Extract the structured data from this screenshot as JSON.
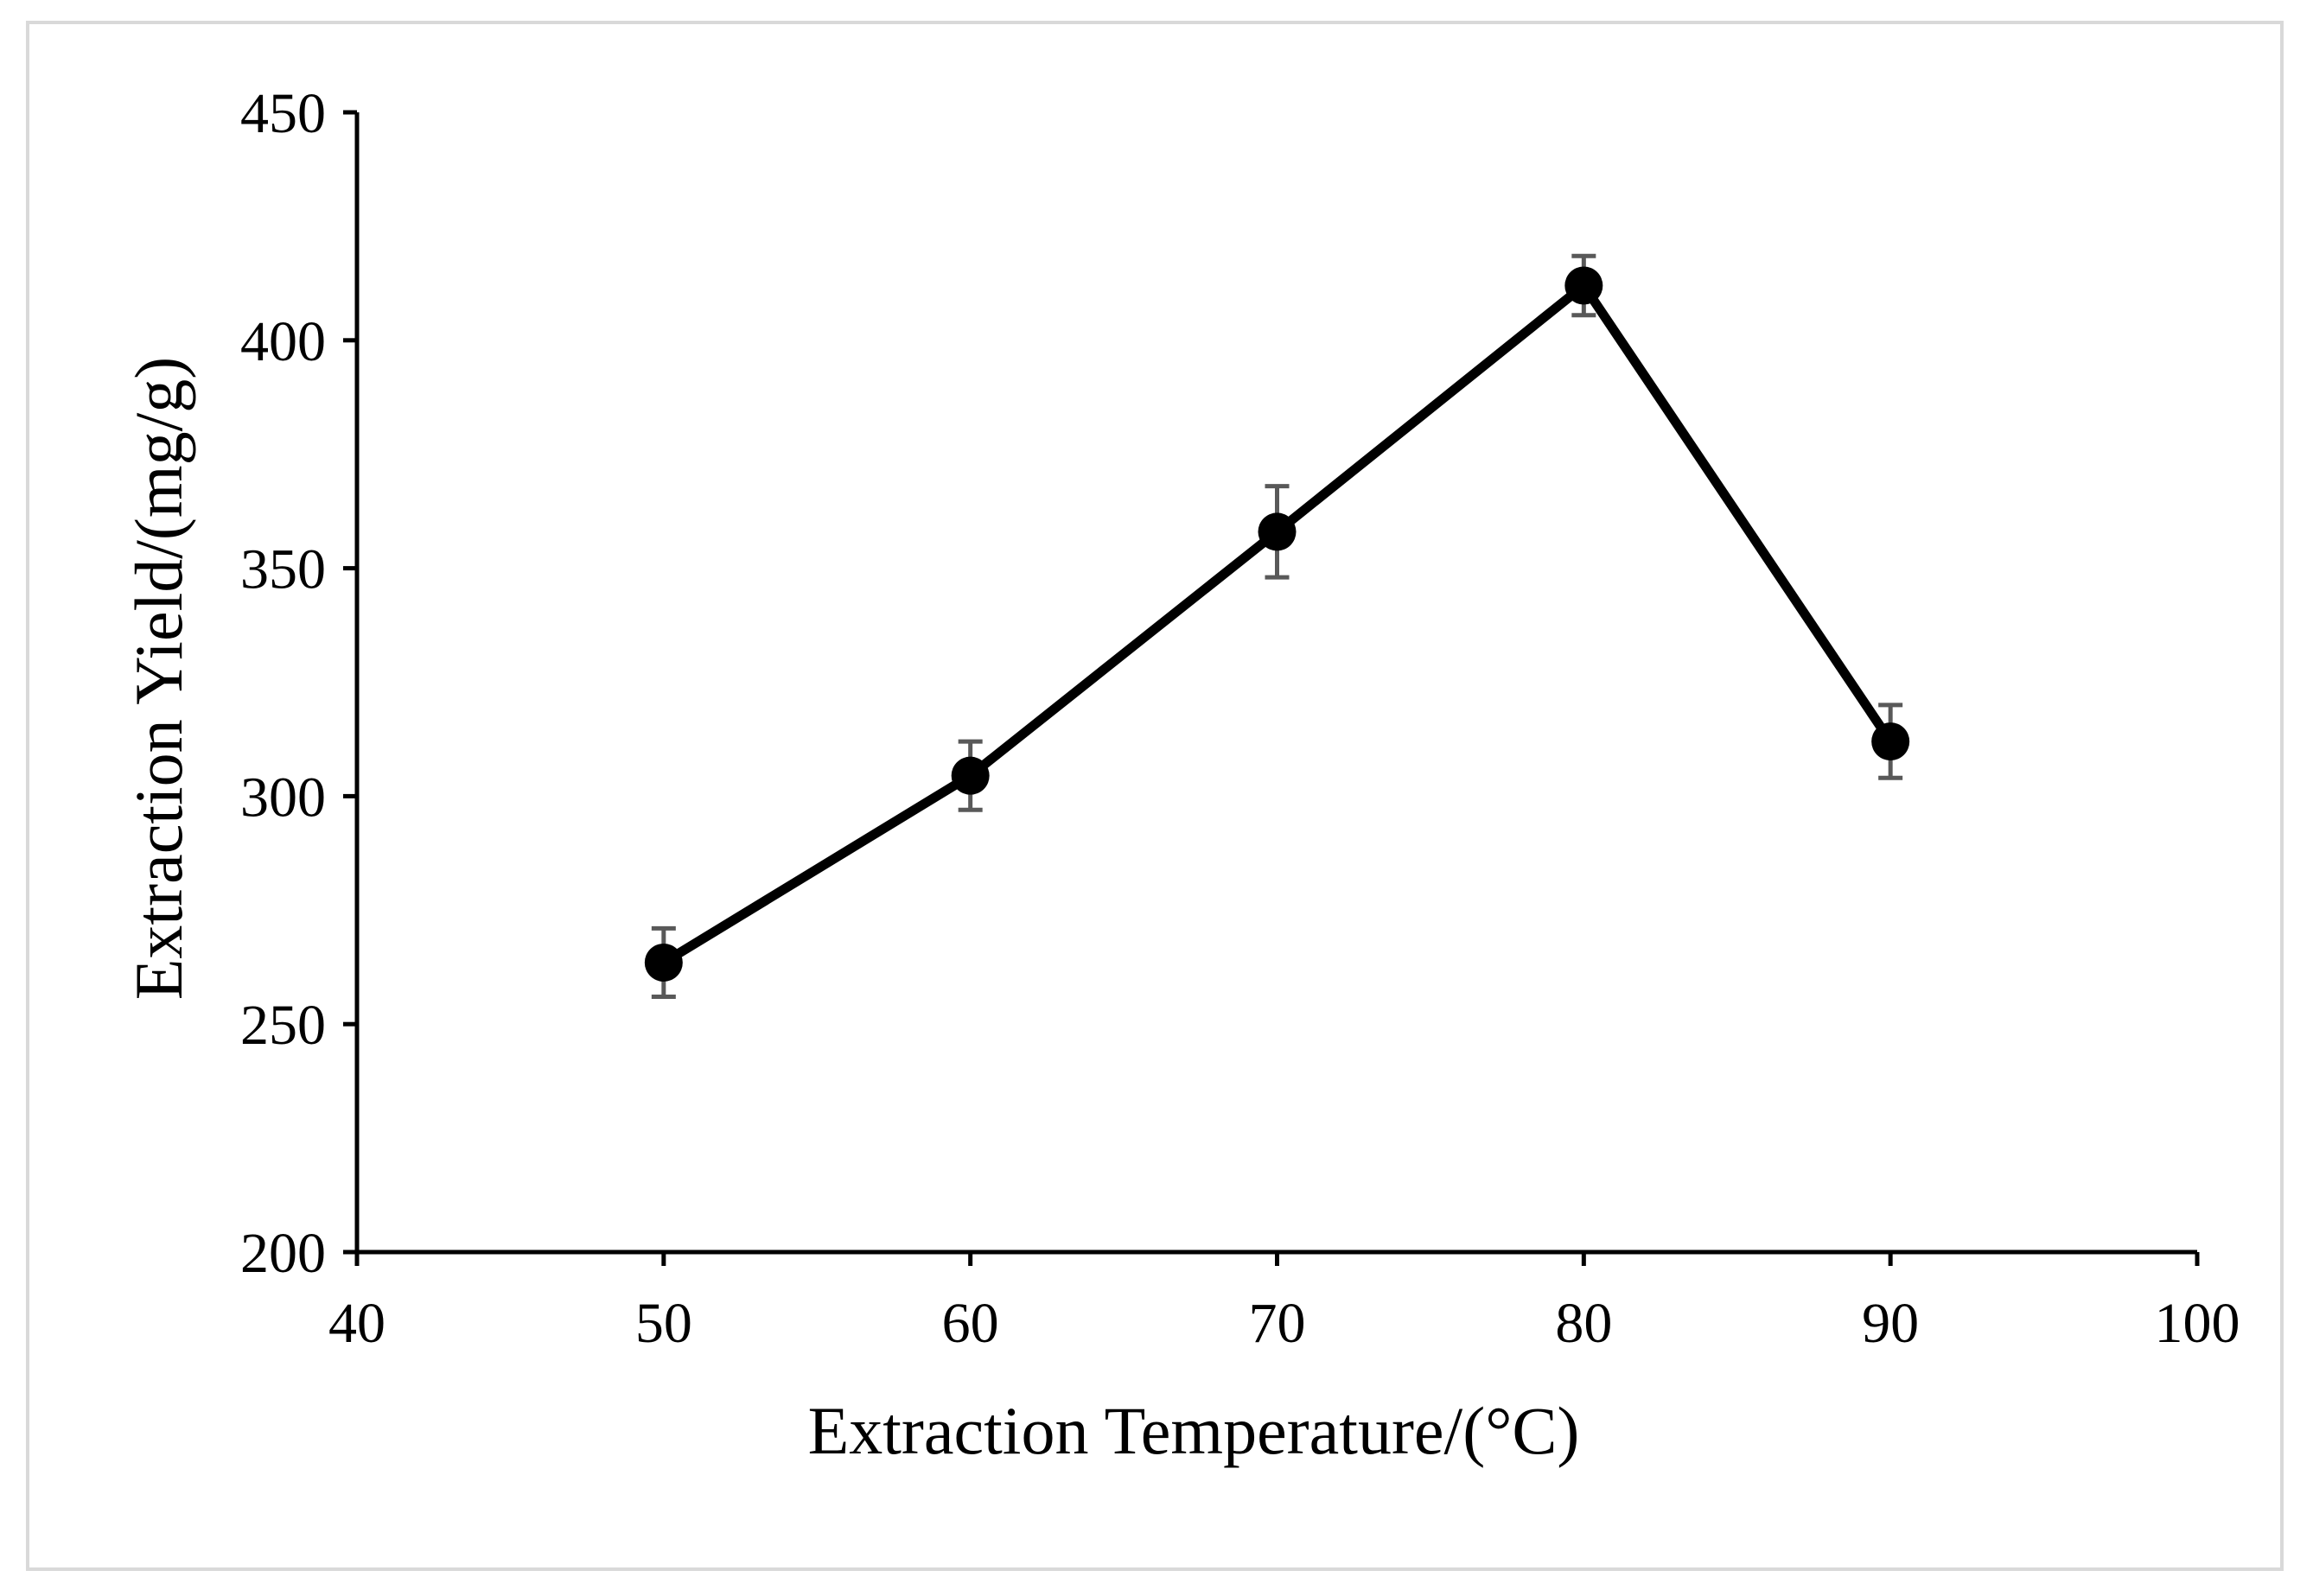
{
  "chart_data": {
    "type": "line",
    "title": "",
    "xlabel": "Extraction Temperature/(°C)",
    "ylabel": "Extraction Yield/(mg/g)",
    "xlim": [
      40,
      100
    ],
    "ylim": [
      200,
      450
    ],
    "x_ticks": [
      40,
      50,
      60,
      70,
      80,
      90,
      100
    ],
    "y_ticks": [
      200,
      250,
      300,
      350,
      400,
      450
    ],
    "x_tick_labels": [
      "40",
      "50",
      "60",
      "70",
      "80",
      "90",
      "100"
    ],
    "y_tick_labels": [
      "200",
      "250",
      "300",
      "350",
      "400",
      "450"
    ],
    "grid": false,
    "legend": "none",
    "series": [
      {
        "name": "Extraction Yield",
        "x": [
          50,
          60,
          70,
          80,
          90
        ],
        "values": [
          263.5,
          304.5,
          358,
          412,
          312
        ],
        "error": [
          7.5,
          7.5,
          10,
          6.5,
          8
        ],
        "line_color": "#000000",
        "marker_color": "#000000",
        "error_color": "#595959"
      }
    ]
  }
}
